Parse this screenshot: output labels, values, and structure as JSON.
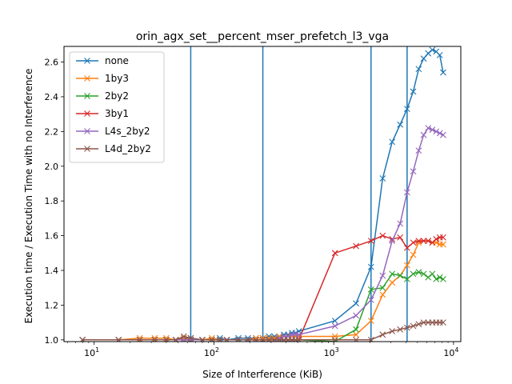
{
  "chart_data": {
    "type": "line",
    "title": "orin_agx_set__percent_mser_prefetch_l3_vga",
    "xlabel": "Size of Interference (KiB)",
    "ylabel": "Execution time / Execution Time with no Interference",
    "xscale": "log",
    "xlim": [
      5.6,
      11500
    ],
    "ylim": [
      0.99,
      2.69
    ],
    "xticks": [
      {
        "value": 10,
        "base": "10",
        "exp": "1"
      },
      {
        "value": 100,
        "base": "10",
        "exp": "2"
      },
      {
        "value": 1000,
        "base": "10",
        "exp": "3"
      },
      {
        "value": 10000,
        "base": "10",
        "exp": "4"
      }
    ],
    "yticks": [
      1.0,
      1.2,
      1.4,
      1.6,
      1.8,
      2.0,
      2.2,
      2.4,
      2.6
    ],
    "ytick_labels": [
      "1.0",
      "1.2",
      "1.4",
      "1.6",
      "1.8",
      "2.0",
      "2.2",
      "2.4",
      "2.6"
    ],
    "vlines": [
      64,
      256,
      2048,
      4096
    ],
    "vline_color": "#1f77b4",
    "legend_position": "top-left",
    "grid": false,
    "series": [
      {
        "name": "none",
        "color": "#1f77b4",
        "x": [
          8,
          16,
          24,
          32,
          40,
          48,
          56,
          64,
          80,
          96,
          112,
          128,
          160,
          192,
          224,
          256,
          288,
          320,
          352,
          384,
          416,
          448,
          480,
          512,
          1024,
          1536,
          2048,
          2560,
          3072,
          3584,
          4096,
          4608,
          5120,
          5632,
          6144,
          6656,
          7168,
          7680,
          8192
        ],
        "y": [
          1.0,
          1.0,
          1.0,
          1.0,
          1.0,
          1.0,
          1.01,
          1.01,
          1.0,
          1.0,
          1.01,
          1.0,
          1.01,
          1.01,
          1.01,
          1.01,
          1.02,
          1.02,
          1.02,
          1.03,
          1.03,
          1.04,
          1.04,
          1.05,
          1.11,
          1.21,
          1.42,
          1.93,
          2.14,
          2.24,
          2.33,
          2.43,
          2.56,
          2.62,
          2.65,
          2.67,
          2.66,
          2.64,
          2.54
        ]
      },
      {
        "name": "1by3",
        "color": "#ff7f0e",
        "x": [
          8,
          16,
          24,
          32,
          40,
          48,
          56,
          64,
          80,
          96,
          112,
          128,
          160,
          192,
          224,
          256,
          288,
          320,
          352,
          384,
          416,
          448,
          480,
          512,
          1024,
          1536,
          2048,
          2560,
          3072,
          3584,
          4096,
          4608,
          5120,
          5632,
          6144,
          6656,
          7168,
          7680,
          8192
        ],
        "y": [
          1.0,
          1.0,
          1.01,
          1.01,
          1.01,
          1.0,
          1.01,
          1.0,
          1.0,
          1.01,
          1.0,
          1.0,
          1.0,
          1.0,
          1.01,
          1.01,
          1.01,
          1.01,
          1.02,
          1.02,
          1.02,
          1.02,
          1.02,
          1.02,
          1.02,
          1.03,
          1.11,
          1.26,
          1.33,
          1.37,
          1.43,
          1.49,
          1.56,
          1.57,
          1.57,
          1.56,
          1.56,
          1.55,
          1.55
        ]
      },
      {
        "name": "2by2",
        "color": "#2ca02c",
        "x": [
          8,
          16,
          24,
          32,
          40,
          48,
          56,
          64,
          80,
          96,
          112,
          128,
          160,
          192,
          224,
          256,
          288,
          320,
          352,
          384,
          416,
          448,
          480,
          512,
          1024,
          1536,
          2048,
          2560,
          3072,
          3584,
          4096,
          4608,
          5120,
          5632,
          6144,
          6656,
          7168,
          7680,
          8192
        ],
        "y": [
          1.0,
          1.0,
          1.0,
          1.0,
          1.0,
          1.0,
          1.0,
          1.0,
          1.0,
          1.0,
          1.0,
          1.0,
          1.0,
          1.0,
          1.0,
          1.0,
          1.0,
          1.0,
          1.0,
          1.0,
          1.0,
          1.0,
          1.0,
          1.0,
          0.99,
          1.06,
          1.29,
          1.3,
          1.38,
          1.37,
          1.35,
          1.38,
          1.39,
          1.38,
          1.36,
          1.38,
          1.35,
          1.36,
          1.35
        ]
      },
      {
        "name": "3by1",
        "color": "#d62728",
        "x": [
          8,
          16,
          24,
          32,
          40,
          48,
          56,
          64,
          80,
          96,
          112,
          128,
          160,
          192,
          224,
          256,
          288,
          320,
          352,
          384,
          416,
          448,
          480,
          512,
          1024,
          1536,
          2048,
          2560,
          3072,
          3584,
          4096,
          4608,
          5120,
          5632,
          6144,
          6656,
          7168,
          7680,
          8192
        ],
        "y": [
          1.0,
          1.0,
          1.0,
          1.0,
          1.0,
          1.0,
          1.0,
          1.0,
          1.0,
          1.0,
          1.0,
          1.0,
          1.0,
          1.0,
          1.0,
          1.0,
          1.0,
          1.0,
          1.0,
          1.0,
          1.0,
          1.0,
          1.0,
          1.0,
          1.5,
          1.54,
          1.57,
          1.6,
          1.58,
          1.59,
          1.53,
          1.56,
          1.57,
          1.57,
          1.57,
          1.56,
          1.58,
          1.59,
          1.59
        ]
      },
      {
        "name": "L4s_2by2",
        "color": "#9467bd",
        "x": [
          8,
          16,
          24,
          32,
          40,
          48,
          56,
          64,
          80,
          96,
          112,
          128,
          160,
          192,
          224,
          256,
          288,
          320,
          352,
          384,
          416,
          448,
          480,
          512,
          1024,
          1536,
          2048,
          2560,
          3072,
          3584,
          4096,
          4608,
          5120,
          5632,
          6144,
          6656,
          7168,
          7680,
          8192
        ],
        "y": [
          1.0,
          1.0,
          1.0,
          1.0,
          1.0,
          1.0,
          1.0,
          1.0,
          1.0,
          1.0,
          1.0,
          1.0,
          1.0,
          1.0,
          1.0,
          1.0,
          1.0,
          1.0,
          1.01,
          1.02,
          1.02,
          1.03,
          1.03,
          1.03,
          1.08,
          1.14,
          1.23,
          1.37,
          1.57,
          1.67,
          1.85,
          1.97,
          2.09,
          2.18,
          2.22,
          2.21,
          2.2,
          2.19,
          2.18
        ]
      },
      {
        "name": "L4d_2by2",
        "color": "#8c564b",
        "x": [
          8,
          16,
          24,
          32,
          40,
          48,
          56,
          64,
          80,
          96,
          112,
          128,
          160,
          192,
          224,
          256,
          288,
          320,
          352,
          384,
          416,
          448,
          480,
          512,
          1024,
          1536,
          2048,
          2560,
          3072,
          3584,
          4096,
          4608,
          5120,
          5632,
          6144,
          6656,
          7168,
          7680,
          8192
        ],
        "y": [
          1.0,
          1.0,
          1.0,
          1.0,
          1.0,
          1.0,
          1.02,
          1.01,
          1.0,
          1.0,
          1.0,
          1.0,
          1.0,
          1.0,
          1.0,
          1.0,
          1.0,
          1.0,
          1.0,
          1.0,
          1.0,
          1.0,
          1.0,
          1.0,
          1.0,
          1.0,
          1.0,
          1.03,
          1.05,
          1.06,
          1.07,
          1.08,
          1.09,
          1.1,
          1.1,
          1.1,
          1.1,
          1.1,
          1.1
        ]
      }
    ]
  }
}
